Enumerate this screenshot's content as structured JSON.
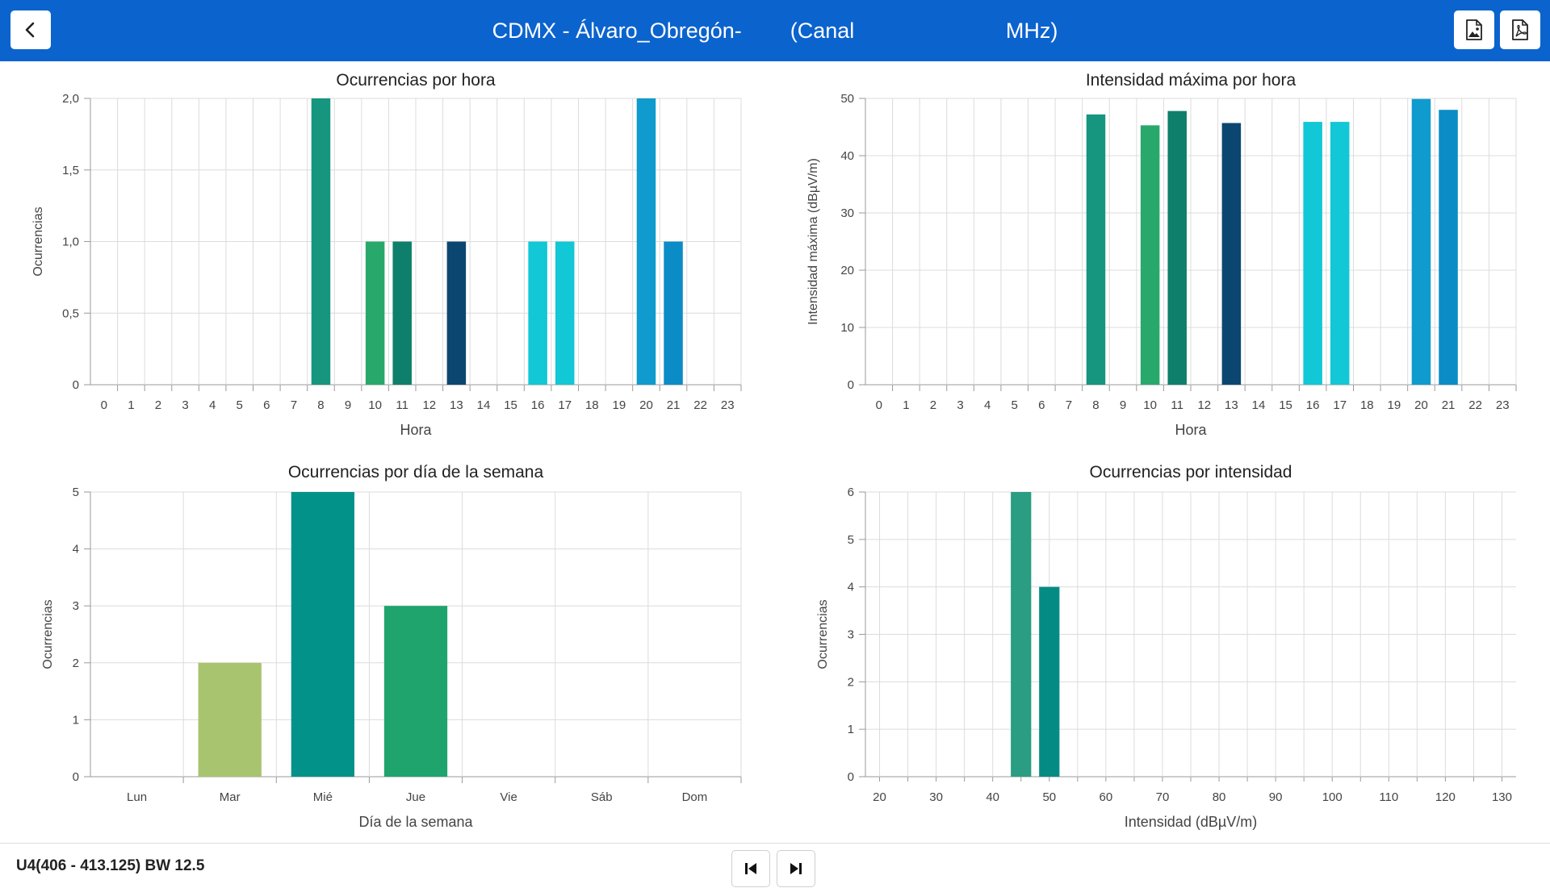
{
  "header": {
    "title": "CDMX - Álvaro_Obregón-        (Canal                         MHz)",
    "back_icon": "chevron-left-icon",
    "export_image_icon": "image-file-icon",
    "export_pdf_icon": "pdf-file-icon",
    "background_color": "#0b63ce"
  },
  "footer": {
    "label": "U4(406 - 413.125) BW 12.5",
    "first_icon": "skip-first-icon",
    "last_icon": "skip-last-icon"
  },
  "chart_data": [
    {
      "type": "bar",
      "title": "Ocurrencias por hora",
      "xlabel": "Hora",
      "ylabel": "Ocurrencias",
      "categories": [
        "0",
        "1",
        "2",
        "3",
        "4",
        "5",
        "6",
        "7",
        "8",
        "9",
        "10",
        "11",
        "12",
        "13",
        "14",
        "15",
        "16",
        "17",
        "18",
        "19",
        "20",
        "21",
        "22",
        "23"
      ],
      "values": [
        0,
        0,
        0,
        0,
        0,
        0,
        0,
        0,
        2,
        0,
        1,
        1,
        0,
        1,
        0,
        0,
        1,
        1,
        0,
        0,
        2,
        1,
        0,
        0
      ],
      "colors": [
        "#16957f",
        "#16957f",
        "#16957f",
        "#16957f",
        "#16957f",
        "#16957f",
        "#16957f",
        "#16957f",
        "#16957f",
        "#16957f",
        "#28a96b",
        "#0e7f6b",
        "#16957f",
        "#0b4670",
        "#16957f",
        "#16957f",
        "#12c7d6",
        "#12c7d6",
        "#16957f",
        "#16957f",
        "#0f9bce",
        "#0b8cc6",
        "#16957f",
        "#16957f"
      ],
      "yticks": [
        "0",
        "0,5",
        "1,0",
        "1,5",
        "2,0"
      ],
      "ylim": [
        0,
        2
      ],
      "grid": true
    },
    {
      "type": "bar",
      "title": "Intensidad máxima por hora",
      "xlabel": "Hora",
      "ylabel": "Intensidad máxima (dBµV/m)",
      "categories": [
        "0",
        "1",
        "2",
        "3",
        "4",
        "5",
        "6",
        "7",
        "8",
        "9",
        "10",
        "11",
        "12",
        "13",
        "14",
        "15",
        "16",
        "17",
        "18",
        "19",
        "20",
        "21",
        "22",
        "23"
      ],
      "values": [
        0,
        0,
        0,
        0,
        0,
        0,
        0,
        0,
        47.2,
        0,
        45.3,
        47.8,
        0,
        45.7,
        0,
        0,
        45.9,
        45.9,
        0,
        0,
        49.9,
        48.0,
        0,
        0
      ],
      "colors": [
        "#16957f",
        "#16957f",
        "#16957f",
        "#16957f",
        "#16957f",
        "#16957f",
        "#16957f",
        "#16957f",
        "#16957f",
        "#16957f",
        "#28a96b",
        "#0e7f6b",
        "#16957f",
        "#0b4670",
        "#16957f",
        "#16957f",
        "#12c7d6",
        "#12c7d6",
        "#16957f",
        "#16957f",
        "#0f9bce",
        "#0b8cc6",
        "#16957f",
        "#16957f"
      ],
      "yticks": [
        "0",
        "10",
        "20",
        "30",
        "40",
        "50"
      ],
      "ylim": [
        0,
        50
      ],
      "grid": true
    },
    {
      "type": "bar",
      "title": "Ocurrencias por día de la semana",
      "xlabel": "Día de la semana",
      "ylabel": "Ocurrencias",
      "categories": [
        "Lun",
        "Mar",
        "Mié",
        "Jue",
        "Vie",
        "Sáb",
        "Dom"
      ],
      "values": [
        0,
        2,
        5,
        3,
        0,
        0,
        0
      ],
      "colors": [
        "#a8c46e",
        "#a8c46e",
        "#03928a",
        "#20a46d",
        "#a8c46e",
        "#a8c46e",
        "#a8c46e"
      ],
      "yticks": [
        "0",
        "1",
        "2",
        "3",
        "4",
        "5"
      ],
      "ylim": [
        0,
        5
      ],
      "grid": true
    },
    {
      "type": "bar",
      "title": "Ocurrencias por intensidad",
      "xlabel": "Intensidad (dBµV/m)",
      "ylabel": "Ocurrencias",
      "x_ticks": [
        "20",
        "30",
        "40",
        "50",
        "60",
        "70",
        "80",
        "90",
        "100",
        "110",
        "120",
        "130"
      ],
      "xlim": [
        17.5,
        132.5
      ],
      "bins": [
        {
          "x": 45,
          "value": 6,
          "color": "#2a9d82"
        },
        {
          "x": 50,
          "value": 4,
          "color": "#048c84"
        }
      ],
      "yticks": [
        "0",
        "1",
        "2",
        "3",
        "4",
        "5",
        "6"
      ],
      "ylim": [
        0,
        6
      ],
      "grid": true
    }
  ]
}
